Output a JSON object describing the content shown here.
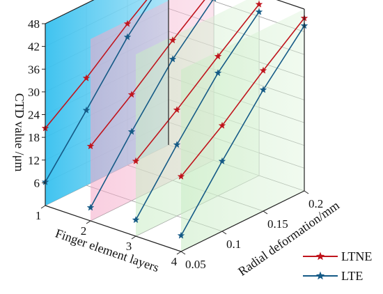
{
  "chart_data": {
    "type": "line",
    "projection": "3d",
    "zlabel": "CTD value /μm",
    "xlabel": "Finger element layers",
    "ylabel": "Radial deformation/mm",
    "z_ticks": [
      "6",
      "12",
      "18",
      "24",
      "30",
      "36",
      "42",
      "48"
    ],
    "x_ticks": [
      "1",
      "2",
      "3",
      "4"
    ],
    "y_ticks": [
      "0.05",
      "0.1",
      "0.15",
      "0.2"
    ],
    "zlim": [
      0,
      48
    ],
    "legend_position": "bottom-right",
    "series": [
      {
        "name": "LTNE",
        "color": "#c0141c",
        "marker": "star",
        "lines": [
          {
            "layer": 1,
            "values": [
              20.4,
              28.3,
              37.3,
              45.4
            ]
          },
          {
            "layer": 2,
            "values": [
              19.7,
              28.0,
              37.0,
              45.4
            ]
          },
          {
            "layer": 3,
            "values": [
              19.8,
              28.0,
              36.8,
              45.2
            ]
          },
          {
            "layer": 4,
            "values": [
              19.8,
              27.9,
              37.1,
              45.6
            ]
          }
        ]
      },
      {
        "name": "LTE",
        "color": "#155a86",
        "marker": "star",
        "lines": [
          {
            "layer": 1,
            "values": [
              6.2,
              19.8,
              33.8,
              45.3
            ]
          },
          {
            "layer": 2,
            "values": [
              3.5,
              18.2,
              32.0,
              42.7
            ]
          },
          {
            "layer": 3,
            "values": [
              4.3,
              18.8,
              32.4,
              43.2
            ]
          },
          {
            "layer": 4,
            "values": [
              4.2,
              18.5,
              32.0,
              43.6
            ]
          }
        ]
      }
    ]
  }
}
